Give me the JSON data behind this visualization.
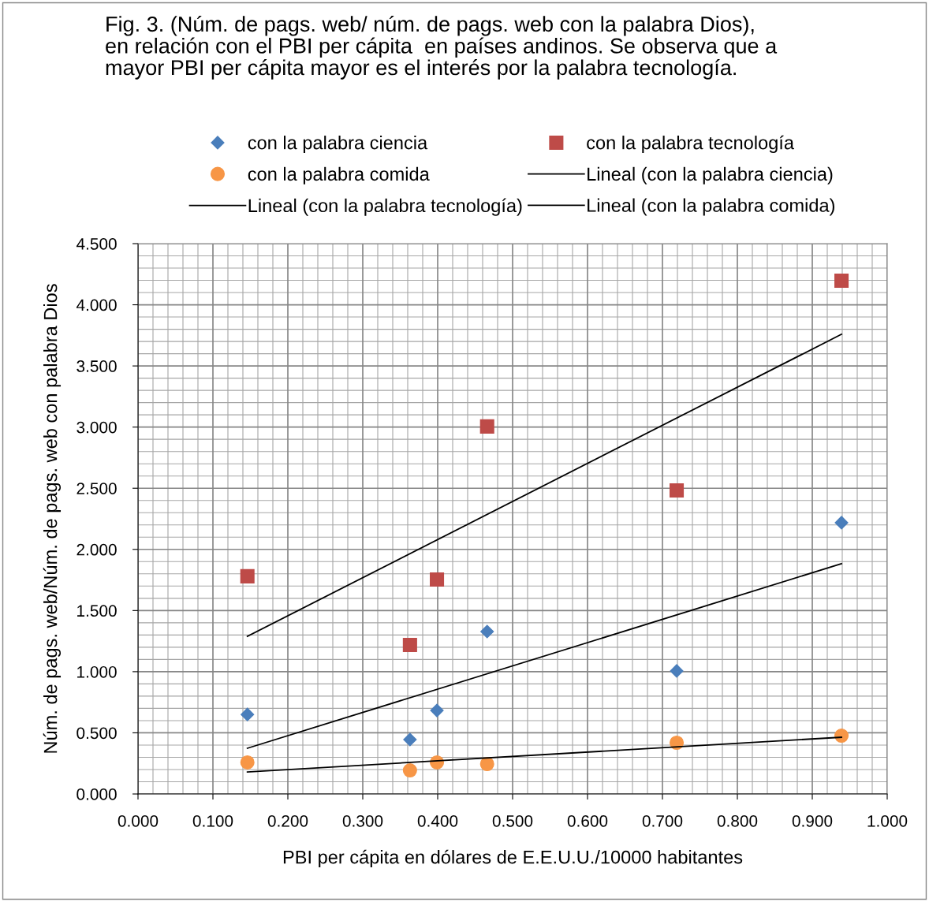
{
  "chart_data": {
    "type": "scatter",
    "title": "Fig. 3. (Núm. de pags. web/ núm. de pags. web con la palabra Dios),\nen relación con el PBI per cápita  en países andinos. Se observa que a\nmayor PBI per cápita mayor es el interés por la palabra tecnología.",
    "xlabel": "PBI per cápita en dólares de E.E.U.U./10000 habitantes",
    "ylabel": "Núm. de pags. web/Núm. de pags. web con palabra Dios",
    "series": [
      {
        "name": "con la palabra ciencia",
        "color": "#4a7ebb",
        "marker": "diamond",
        "x": [
          0.146,
          0.363,
          0.399,
          0.466,
          0.719,
          0.939
        ],
        "values": [
          0.65,
          0.445,
          0.683,
          1.328,
          1.006,
          2.218
        ]
      },
      {
        "name": "con la palabra tecnología",
        "color": "#be4b48",
        "marker": "square",
        "x": [
          0.146,
          0.363,
          0.399,
          0.466,
          0.719,
          0.939
        ],
        "values": [
          1.78,
          1.219,
          1.754,
          3.005,
          2.482,
          4.197
        ]
      },
      {
        "name": "con la palabra comida",
        "color": "#f79646",
        "marker": "circle",
        "x": [
          0.146,
          0.363,
          0.399,
          0.466,
          0.719,
          0.939
        ],
        "values": [
          0.258,
          0.193,
          0.258,
          0.245,
          0.419,
          0.477
        ]
      },
      {
        "name": "Lineal (con la palabra ciencia)",
        "type": "line",
        "color": "#000000",
        "marker": "none",
        "x": [
          0.146,
          0.939
        ],
        "values": [
          0.374,
          1.883
        ]
      },
      {
        "name": "Lineal (con la palabra tecnología)",
        "type": "line",
        "color": "#000000",
        "marker": "none",
        "x": [
          0.146,
          0.939
        ],
        "values": [
          1.289,
          3.759
        ]
      },
      {
        "name": "Lineal (con la palabra comida)",
        "type": "line",
        "color": "#000000",
        "marker": "none",
        "x": [
          0.146,
          0.939
        ],
        "values": [
          0.18,
          0.464
        ]
      }
    ],
    "xlim": [
      0,
      1
    ],
    "xticks": [
      {
        "value": 0,
        "label": "0.000"
      },
      {
        "value": 0.1,
        "label": "0.100"
      },
      {
        "value": 0.2,
        "label": "0.200"
      },
      {
        "value": 0.3,
        "label": "0.300"
      },
      {
        "value": 0.4,
        "label": "0.400"
      },
      {
        "value": 0.5,
        "label": "0.500"
      },
      {
        "value": 0.6,
        "label": "0.600"
      },
      {
        "value": 0.7,
        "label": "0.700"
      },
      {
        "value": 0.8,
        "label": "0.800"
      },
      {
        "value": 0.9,
        "label": "0.900"
      },
      {
        "value": 1,
        "label": "1.000"
      }
    ],
    "ylim": [
      0,
      4.5
    ],
    "yticks": [
      {
        "value": 0,
        "label": "0.000"
      },
      {
        "value": 0.5,
        "label": "0.500"
      },
      {
        "value": 1,
        "label": "1.000"
      },
      {
        "value": 1.5,
        "label": "1.500"
      },
      {
        "value": 2,
        "label": "2.000"
      },
      {
        "value": 2.5,
        "label": "2.500"
      },
      {
        "value": 3,
        "label": "3.000"
      },
      {
        "value": 3.5,
        "label": "3.500"
      },
      {
        "value": 4,
        "label": "4.000"
      },
      {
        "value": 4.5,
        "label": "4.500"
      }
    ],
    "grid": true,
    "legend": "top"
  }
}
